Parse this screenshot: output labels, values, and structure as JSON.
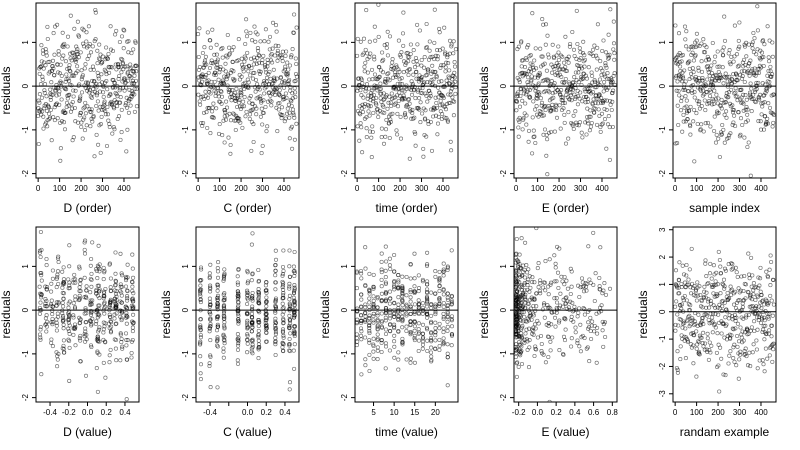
{
  "figure": {
    "rows": 2,
    "cols": 5
  },
  "chart_data": [
    {
      "type": "scatter",
      "xlabel": "D (order)",
      "ylabel": "residuals",
      "xticks": [
        0,
        100,
        200,
        300,
        400
      ],
      "xtick_labels": [
        "0",
        "100",
        "200",
        "300",
        "400"
      ],
      "xlim": [
        -10,
        470
      ],
      "yticks": [
        -2,
        -1,
        0,
        1
      ],
      "ytick_labels": [
        "-2",
        "-1",
        "0",
        "1"
      ],
      "ylim": [
        -2.1,
        1.9
      ],
      "reference_line": 0,
      "generator": {
        "kind": "index",
        "n": 460,
        "xmin": 0,
        "xmax": 460,
        "sd": 0.6,
        "seed": 11
      }
    },
    {
      "type": "scatter",
      "xlabel": "C (order)",
      "ylabel": "residuals",
      "xticks": [
        0,
        100,
        200,
        300,
        400
      ],
      "xtick_labels": [
        "0",
        "100",
        "200",
        "300",
        "400"
      ],
      "xlim": [
        -10,
        470
      ],
      "yticks": [
        -2,
        -1,
        0,
        1
      ],
      "ytick_labels": [
        "-2",
        "-1",
        "0",
        "1"
      ],
      "ylim": [
        -2.1,
        1.9
      ],
      "reference_line": 0,
      "generator": {
        "kind": "index",
        "n": 460,
        "xmin": 0,
        "xmax": 460,
        "sd": 0.6,
        "seed": 23
      }
    },
    {
      "type": "scatter",
      "xlabel": "time (order)",
      "ylabel": "residuals",
      "xticks": [
        0,
        100,
        200,
        300,
        400
      ],
      "xtick_labels": [
        "0",
        "100",
        "200",
        "300",
        "400"
      ],
      "xlim": [
        -10,
        470
      ],
      "yticks": [
        -2,
        -1,
        0,
        1
      ],
      "ytick_labels": [
        "-2",
        "-1",
        "0",
        "1"
      ],
      "ylim": [
        -2.1,
        1.9
      ],
      "reference_line": 0,
      "generator": {
        "kind": "index",
        "n": 460,
        "xmin": 0,
        "xmax": 460,
        "sd": 0.6,
        "seed": 37
      }
    },
    {
      "type": "scatter",
      "xlabel": "E (order)",
      "ylabel": "residuals",
      "xticks": [
        0,
        100,
        200,
        300,
        400
      ],
      "xtick_labels": [
        "0",
        "100",
        "200",
        "300",
        "400"
      ],
      "xlim": [
        -10,
        470
      ],
      "yticks": [
        -2,
        -1,
        0,
        1
      ],
      "ytick_labels": [
        "-2",
        "-1",
        "0",
        "1"
      ],
      "ylim": [
        -2.1,
        1.9
      ],
      "reference_line": 0,
      "generator": {
        "kind": "index",
        "n": 460,
        "xmin": 0,
        "xmax": 460,
        "sd": 0.6,
        "seed": 41
      }
    },
    {
      "type": "scatter",
      "xlabel": "sample index",
      "ylabel": "residuals",
      "xticks": [
        0,
        100,
        200,
        300,
        400
      ],
      "xtick_labels": [
        "0",
        "100",
        "200",
        "300",
        "400"
      ],
      "xlim": [
        -10,
        470
      ],
      "yticks": [
        -2,
        -1,
        0,
        1
      ],
      "ytick_labels": [
        "-2",
        "-1",
        "0",
        "1"
      ],
      "ylim": [
        -2.1,
        1.9
      ],
      "reference_line": 0,
      "generator": {
        "kind": "index",
        "n": 460,
        "xmin": 0,
        "xmax": 460,
        "sd": 0.6,
        "seed": 53
      }
    },
    {
      "type": "scatter",
      "xlabel": "D (value)",
      "ylabel": "residuals",
      "xticks": [
        -0.4,
        -0.2,
        0.0,
        0.2,
        0.4
      ],
      "xtick_labels": [
        "-0.4",
        "-0.2",
        "0.0",
        "0.2",
        "0.4"
      ],
      "xlim": [
        -0.55,
        0.55
      ],
      "yticks": [
        -2,
        -1,
        0,
        1
      ],
      "ytick_labels": [
        "-2",
        "-1",
        "0",
        "1"
      ],
      "ylim": [
        -2.1,
        1.9
      ],
      "reference_line": 0,
      "generator": {
        "kind": "columns",
        "n": 460,
        "columns": [
          -0.5,
          -0.44,
          -0.38,
          -0.32,
          -0.26,
          -0.2,
          -0.14,
          -0.08,
          -0.02,
          0.04,
          0.1,
          0.12,
          0.18,
          0.24,
          0.3,
          0.36,
          0.42,
          0.48
        ],
        "jitter": 0.012,
        "sd": 0.6,
        "seed": 61
      }
    },
    {
      "type": "scatter",
      "xlabel": "C (value)",
      "ylabel": "residuals",
      "xticks": [
        -0.4,
        -0.2,
        0.0,
        0.2,
        0.4
      ],
      "xtick_labels": [
        "-0.4",
        "",
        "0.0",
        "0.2",
        "0.4"
      ],
      "xlim": [
        -0.55,
        0.55
      ],
      "yticks": [
        -2,
        -1,
        0,
        1
      ],
      "ytick_labels": [
        "-2",
        "-1",
        "0",
        "1"
      ],
      "ylim": [
        -2.1,
        1.9
      ],
      "reference_line": 0,
      "generator": {
        "kind": "columns",
        "n": 460,
        "columns": [
          -0.5,
          -0.4,
          -0.32,
          -0.25,
          -0.1,
          0.0,
          0.05,
          0.12,
          0.2,
          0.3,
          0.38,
          0.45,
          0.5
        ],
        "jitter": 0.006,
        "sd": 0.6,
        "seed": 71
      }
    },
    {
      "type": "scatter",
      "xlabel": "time (value)",
      "ylabel": "residuals",
      "xticks": [
        5,
        10,
        15,
        20
      ],
      "xtick_labels": [
        "5",
        "10",
        "15",
        "20"
      ],
      "xlim": [
        0.5,
        25.5
      ],
      "yticks": [
        -2,
        -1,
        0,
        1
      ],
      "ytick_labels": [
        "-2",
        "-1",
        "0",
        "1"
      ],
      "ylim": [
        -2.1,
        1.9
      ],
      "reference_line": 0,
      "generator": {
        "kind": "columns",
        "n": 460,
        "columns": [
          1,
          2,
          3,
          4,
          5,
          6,
          7,
          8,
          9,
          10,
          11,
          12,
          13,
          14,
          15,
          16,
          17,
          18,
          19,
          20,
          21,
          22,
          23,
          24
        ],
        "jitter": 0.05,
        "sd": 0.6,
        "seed": 83
      }
    },
    {
      "type": "scatter",
      "xlabel": "E (value)",
      "ylabel": "residuals",
      "xticks": [
        -0.2,
        0.0,
        0.2,
        0.4,
        0.6,
        0.8
      ],
      "xtick_labels": [
        "-0.2",
        "0.0",
        "0.2",
        "0.4",
        "0.6",
        "0.8"
      ],
      "xlim": [
        -0.25,
        0.85
      ],
      "yticks": [
        -2,
        -1,
        0,
        1
      ],
      "ytick_labels": [
        "-2",
        "-1",
        "0",
        "1"
      ],
      "ylim": [
        -2.1,
        1.9
      ],
      "reference_line": 0,
      "generator": {
        "kind": "skewed",
        "n": 460,
        "xmin": -0.23,
        "xmax": 0.78,
        "power": 2.5,
        "sd": 0.6,
        "seed": 97
      }
    },
    {
      "type": "scatter",
      "xlabel": "randam example",
      "ylabel": "residuals",
      "xticks": [
        0,
        100,
        200,
        300,
        400
      ],
      "xtick_labels": [
        "0",
        "100",
        "200",
        "300",
        "400"
      ],
      "xlim": [
        -10,
        470
      ],
      "yticks": [
        -3,
        -2,
        -1,
        0,
        1,
        2,
        3
      ],
      "ytick_labels": [
        "-3",
        "-2",
        "-1",
        "0",
        "1",
        "2",
        "3"
      ],
      "ylim": [
        -3.3,
        3.1
      ],
      "reference_line": 0,
      "generator": {
        "kind": "index",
        "n": 460,
        "xmin": 0,
        "xmax": 460,
        "sd": 1.0,
        "seed": 101
      }
    }
  ]
}
